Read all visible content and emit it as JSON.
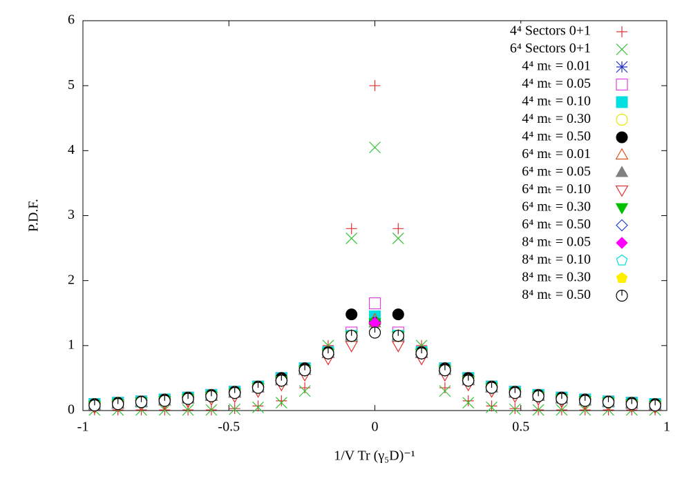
{
  "chart_data": {
    "type": "scatter",
    "xlabel": "1/V Tr (γ₅D)⁻¹",
    "ylabel": "P.D.F.",
    "xlim": [
      -1,
      1
    ],
    "ylim": [
      0,
      6
    ],
    "xticks": [
      -1,
      -0.5,
      0,
      0.5,
      1
    ],
    "yticks": [
      0,
      1,
      2,
      3,
      4,
      5,
      6
    ],
    "legend": "top-right",
    "x": [
      -0.96,
      -0.88,
      -0.8,
      -0.72,
      -0.64,
      -0.56,
      -0.48,
      -0.4,
      -0.32,
      -0.24,
      -0.16,
      -0.08,
      0,
      0.08,
      0.16,
      0.24,
      0.32,
      0.4,
      0.48,
      0.56,
      0.64,
      0.72,
      0.8,
      0.88,
      0.96
    ],
    "series": [
      {
        "name": "4⁴ Sectors 0+1",
        "color": "#e03030",
        "marker": "plus",
        "values": [
          0.01,
          0.01,
          0.01,
          0.01,
          0.01,
          0.01,
          0.03,
          0.07,
          0.15,
          0.35,
          1.0,
          2.8,
          5.0,
          2.8,
          1.0,
          0.35,
          0.15,
          0.07,
          0.03,
          0.01,
          0.01,
          0.01,
          0.01,
          0.01,
          0.01
        ]
      },
      {
        "name": "6⁴ Sectors 0+1",
        "color": "#30c030",
        "marker": "cross",
        "values": [
          0.01,
          0.01,
          0.01,
          0.01,
          0.01,
          0.01,
          0.02,
          0.05,
          0.12,
          0.3,
          1.0,
          2.65,
          4.05,
          2.65,
          1.0,
          0.3,
          0.12,
          0.05,
          0.02,
          0.01,
          0.01,
          0.01,
          0.01,
          0.01,
          0.01
        ]
      },
      {
        "name": "4⁴ mₜ = 0.01",
        "color": "#2030c0",
        "marker": "star",
        "values": [
          0.1,
          0.12,
          0.14,
          0.17,
          0.2,
          0.24,
          0.29,
          0.37,
          0.5,
          0.65,
          0.9,
          1.15,
          1.3,
          1.15,
          0.9,
          0.65,
          0.5,
          0.37,
          0.29,
          0.24,
          0.2,
          0.17,
          0.14,
          0.12,
          0.1
        ]
      },
      {
        "name": "4⁴ mₜ = 0.05",
        "color": "#e040e0",
        "marker": "square",
        "values": [
          0.1,
          0.12,
          0.14,
          0.17,
          0.2,
          0.24,
          0.29,
          0.37,
          0.5,
          0.65,
          0.9,
          1.2,
          1.65,
          1.2,
          0.9,
          0.65,
          0.5,
          0.37,
          0.29,
          0.24,
          0.2,
          0.17,
          0.14,
          0.12,
          0.1
        ]
      },
      {
        "name": "4⁴ mₜ = 0.10",
        "color": "#00e0e0",
        "marker": "square-filled",
        "values": [
          0.1,
          0.12,
          0.14,
          0.17,
          0.2,
          0.24,
          0.29,
          0.37,
          0.5,
          0.65,
          0.9,
          1.15,
          1.45,
          1.15,
          0.9,
          0.65,
          0.5,
          0.37,
          0.29,
          0.24,
          0.2,
          0.17,
          0.14,
          0.12,
          0.1
        ]
      },
      {
        "name": "4⁴ mₜ = 0.30",
        "color": "#e8e800",
        "marker": "circle",
        "values": [
          0.1,
          0.12,
          0.14,
          0.17,
          0.2,
          0.24,
          0.29,
          0.37,
          0.5,
          0.65,
          0.9,
          1.15,
          1.2,
          1.15,
          0.9,
          0.65,
          0.5,
          0.37,
          0.29,
          0.24,
          0.2,
          0.17,
          0.14,
          0.12,
          0.1
        ]
      },
      {
        "name": "4⁴ mₜ = 0.50",
        "color": "#000000",
        "marker": "circle-filled",
        "values": [
          0.1,
          0.12,
          0.14,
          0.17,
          0.2,
          0.24,
          0.29,
          0.37,
          0.5,
          0.65,
          0.9,
          1.48,
          1.35,
          1.48,
          0.9,
          0.65,
          0.5,
          0.37,
          0.29,
          0.24,
          0.2,
          0.17,
          0.14,
          0.12,
          0.1
        ]
      },
      {
        "name": "6⁴ mₜ = 0.01",
        "color": "#e05020",
        "marker": "triangle",
        "values": [
          0.08,
          0.1,
          0.13,
          0.15,
          0.18,
          0.22,
          0.27,
          0.35,
          0.46,
          0.62,
          0.88,
          1.15,
          1.4,
          1.15,
          0.88,
          0.62,
          0.46,
          0.35,
          0.27,
          0.22,
          0.18,
          0.15,
          0.13,
          0.1,
          0.08
        ]
      },
      {
        "name": "6⁴ mₜ = 0.05",
        "color": "#808080",
        "marker": "triangle-filled",
        "values": [
          0.08,
          0.1,
          0.13,
          0.15,
          0.18,
          0.22,
          0.27,
          0.35,
          0.46,
          0.62,
          0.88,
          1.15,
          1.35,
          1.15,
          0.88,
          0.62,
          0.46,
          0.35,
          0.27,
          0.22,
          0.18,
          0.15,
          0.13,
          0.1,
          0.08
        ]
      },
      {
        "name": "6⁴ mₜ = 0.10",
        "color": "#e03030",
        "marker": "triangle-down",
        "values": [
          0.05,
          0.07,
          0.09,
          0.11,
          0.14,
          0.18,
          0.22,
          0.3,
          0.4,
          0.55,
          0.8,
          1.0,
          1.3,
          1.0,
          0.8,
          0.55,
          0.4,
          0.3,
          0.22,
          0.18,
          0.14,
          0.11,
          0.09,
          0.07,
          0.05
        ]
      },
      {
        "name": "6⁴ mₜ = 0.30",
        "color": "#00c000",
        "marker": "triangle-down-filled",
        "values": [
          0.08,
          0.1,
          0.13,
          0.15,
          0.18,
          0.22,
          0.27,
          0.35,
          0.46,
          0.62,
          0.88,
          1.15,
          1.35,
          1.15,
          0.88,
          0.62,
          0.46,
          0.35,
          0.27,
          0.22,
          0.18,
          0.15,
          0.13,
          0.1,
          0.08
        ]
      },
      {
        "name": "6⁴ mₜ = 0.50",
        "color": "#2040e0",
        "marker": "diamond",
        "values": [
          0.08,
          0.1,
          0.13,
          0.15,
          0.18,
          0.22,
          0.27,
          0.35,
          0.46,
          0.62,
          0.88,
          1.15,
          1.35,
          1.15,
          0.88,
          0.62,
          0.46,
          0.35,
          0.27,
          0.22,
          0.18,
          0.15,
          0.13,
          0.1,
          0.08
        ]
      },
      {
        "name": "8⁴ mₜ = 0.05",
        "color": "#ff00ff",
        "marker": "diamond-filled",
        "values": [
          0.08,
          0.1,
          0.13,
          0.15,
          0.18,
          0.22,
          0.27,
          0.35,
          0.46,
          0.62,
          0.88,
          1.15,
          1.35,
          1.15,
          0.88,
          0.62,
          0.46,
          0.35,
          0.27,
          0.22,
          0.18,
          0.15,
          0.13,
          0.1,
          0.08
        ]
      },
      {
        "name": "8⁴ mₜ = 0.10",
        "color": "#00e0e0",
        "marker": "pentagon",
        "values": [
          0.08,
          0.1,
          0.13,
          0.15,
          0.18,
          0.22,
          0.27,
          0.35,
          0.46,
          0.62,
          0.88,
          1.15,
          1.2,
          1.15,
          0.88,
          0.62,
          0.46,
          0.35,
          0.27,
          0.22,
          0.18,
          0.15,
          0.13,
          0.1,
          0.08
        ]
      },
      {
        "name": "8⁴ mₜ = 0.30",
        "color": "#ffee00",
        "marker": "pentagon-filled",
        "values": [
          0.08,
          0.1,
          0.13,
          0.15,
          0.18,
          0.22,
          0.27,
          0.35,
          0.46,
          0.62,
          0.88,
          1.15,
          1.2,
          1.15,
          0.88,
          0.62,
          0.46,
          0.35,
          0.27,
          0.22,
          0.18,
          0.15,
          0.13,
          0.1,
          0.08
        ]
      },
      {
        "name": "8⁴ mₜ = 0.50",
        "color": "#000000",
        "marker": "circle-tick",
        "values": [
          0.08,
          0.1,
          0.13,
          0.15,
          0.18,
          0.22,
          0.27,
          0.35,
          0.46,
          0.62,
          0.88,
          1.15,
          1.2,
          1.15,
          0.88,
          0.62,
          0.46,
          0.35,
          0.27,
          0.22,
          0.18,
          0.15,
          0.13,
          0.1,
          0.08
        ]
      }
    ]
  }
}
